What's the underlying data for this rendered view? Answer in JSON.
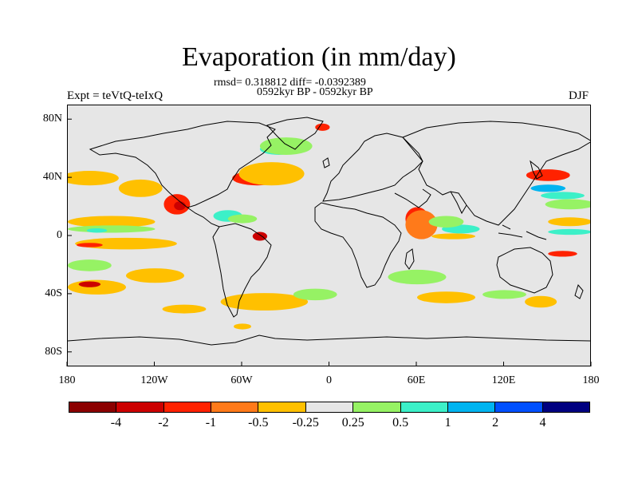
{
  "title": "Evaporation (in mm/day)",
  "stats_line": "rmsd= 0.318812 diff= -0.0392389",
  "period_line": "0592kyr BP - 0592kyr BP",
  "experiment": "Expt = teVtQ-teIxQ",
  "season": "DJF",
  "map": {
    "projection": "cylindrical equidistant",
    "background_color": "#e6e6e6",
    "lon_range": [
      -180,
      180
    ],
    "lat_range": [
      -90,
      90
    ],
    "x_ticks": [
      {
        "lon": -180,
        "label": "180"
      },
      {
        "lon": -120,
        "label": "120W"
      },
      {
        "lon": -60,
        "label": "60W"
      },
      {
        "lon": 0,
        "label": "0"
      },
      {
        "lon": 60,
        "label": "60E"
      },
      {
        "lon": 120,
        "label": "120E"
      },
      {
        "lon": 180,
        "label": "180"
      }
    ],
    "y_ticks": [
      {
        "lat": 80,
        "label": "80N"
      },
      {
        "lat": 40,
        "label": "40N"
      },
      {
        "lat": 0,
        "label": "0"
      },
      {
        "lat": -40,
        "label": "40S"
      },
      {
        "lat": -80,
        "label": "80S"
      }
    ]
  },
  "colorbar": {
    "colors": [
      "#8b0000",
      "#cc0000",
      "#ff2200",
      "#ff7a1a",
      "#ffc000",
      "#e6e6e6",
      "#96f264",
      "#3cf0c8",
      "#00b4f0",
      "#0050ff",
      "#000080"
    ],
    "labels": [
      "-4",
      "-2",
      "-1",
      "-0.5",
      "-0.25",
      "0.25",
      "0.5",
      "1",
      "2",
      "4"
    ]
  },
  "anomaly_regions": [
    {
      "name": "north-pacific-west-band",
      "lon": -165,
      "lat": 40,
      "w": 40,
      "h": 10,
      "color": "#ffc000"
    },
    {
      "name": "north-pacific-east-band",
      "lon": -130,
      "lat": 33,
      "w": 30,
      "h": 12,
      "color": "#ffc000"
    },
    {
      "name": "baja-mexico-anomaly",
      "lon": -105,
      "lat": 22,
      "w": 18,
      "h": 14,
      "color": "#ff2200"
    },
    {
      "name": "mexico-core",
      "lon": -103,
      "lat": 21,
      "w": 8,
      "h": 6,
      "color": "#cc0000"
    },
    {
      "name": "tropical-pacific-orange",
      "lon": -150,
      "lat": 10,
      "w": 60,
      "h": 8,
      "color": "#ffc000"
    },
    {
      "name": "tropical-pacific-green",
      "lon": -150,
      "lat": 5,
      "w": 60,
      "h": 5,
      "color": "#96f264"
    },
    {
      "name": "tropical-pacific-cyan",
      "lon": -160,
      "lat": 4,
      "w": 14,
      "h": 3,
      "color": "#3cf0c8"
    },
    {
      "name": "equatorial-pacific-band",
      "lon": -140,
      "lat": -5,
      "w": 70,
      "h": 8,
      "color": "#ffc000"
    },
    {
      "name": "pacific-red-streak",
      "lon": -165,
      "lat": -6,
      "w": 18,
      "h": 3,
      "color": "#ff2200"
    },
    {
      "name": "caribbean-cyan",
      "lon": -70,
      "lat": 14,
      "w": 20,
      "h": 8,
      "color": "#3cf0c8"
    },
    {
      "name": "caribbean-green",
      "lon": -60,
      "lat": 12,
      "w": 20,
      "h": 6,
      "color": "#96f264"
    },
    {
      "name": "amazon-mouth-red",
      "lon": -48,
      "lat": 0,
      "w": 10,
      "h": 6,
      "color": "#cc0000"
    },
    {
      "name": "north-atlantic-red",
      "lon": -50,
      "lat": 40,
      "w": 34,
      "h": 10,
      "color": "#ff2200"
    },
    {
      "name": "north-atlantic-orange",
      "lon": -40,
      "lat": 43,
      "w": 45,
      "h": 16,
      "color": "#ffc000"
    },
    {
      "name": "labrador-cyan",
      "lon": -35,
      "lat": 60,
      "w": 26,
      "h": 8,
      "color": "#3cf0c8"
    },
    {
      "name": "greenland-sea-green",
      "lon": -30,
      "lat": 62,
      "w": 36,
      "h": 12,
      "color": "#96f264"
    },
    {
      "name": "norwegian-sea-red",
      "lon": -5,
      "lat": 75,
      "w": 10,
      "h": 5,
      "color": "#ff2200"
    },
    {
      "name": "arabian-sea-red",
      "lon": 60,
      "lat": 12,
      "w": 16,
      "h": 16,
      "color": "#ff2200"
    },
    {
      "name": "arabian-sea-orange",
      "lon": 63,
      "lat": 8,
      "w": 22,
      "h": 20,
      "color": "#ff7a1a"
    },
    {
      "name": "north-indian-cyan",
      "lon": 90,
      "lat": 5,
      "w": 26,
      "h": 6,
      "color": "#3cf0c8"
    },
    {
      "name": "north-indian-green",
      "lon": 80,
      "lat": 10,
      "w": 24,
      "h": 8,
      "color": "#96f264"
    },
    {
      "name": "indian-ocean-orange",
      "lon": 85,
      "lat": 0,
      "w": 30,
      "h": 4,
      "color": "#ffc000"
    },
    {
      "name": "west-pacific-red",
      "lon": 150,
      "lat": 42,
      "w": 30,
      "h": 8,
      "color": "#ff2200"
    },
    {
      "name": "west-pacific-blue",
      "lon": 150,
      "lat": 33,
      "w": 24,
      "h": 5,
      "color": "#00b4f0"
    },
    {
      "name": "west-pacific-cyan",
      "lon": 160,
      "lat": 28,
      "w": 30,
      "h": 5,
      "color": "#3cf0c8"
    },
    {
      "name": "west-pacific-green",
      "lon": 165,
      "lat": 22,
      "w": 34,
      "h": 7,
      "color": "#96f264"
    },
    {
      "name": "west-pacific-orange-band",
      "lon": 165,
      "lat": 10,
      "w": 30,
      "h": 6,
      "color": "#ffc000"
    },
    {
      "name": "west-pacific-cyan-band",
      "lon": 165,
      "lat": 3,
      "w": 30,
      "h": 4,
      "color": "#3cf0c8"
    },
    {
      "name": "south-pacific-red",
      "lon": 160,
      "lat": -12,
      "w": 20,
      "h": 4,
      "color": "#ff2200"
    },
    {
      "name": "south-pacific-green",
      "lon": -165,
      "lat": -20,
      "w": 30,
      "h": 8,
      "color": "#96f264"
    },
    {
      "name": "south-pacific-orange",
      "lon": -120,
      "lat": -27,
      "w": 40,
      "h": 10,
      "color": "#ffc000"
    },
    {
      "name": "south-pacific-west-orange",
      "lon": -160,
      "lat": -35,
      "w": 40,
      "h": 10,
      "color": "#ffc000"
    },
    {
      "name": "south-pacific-darkred",
      "lon": -165,
      "lat": -33,
      "w": 15,
      "h": 4,
      "color": "#cc0000"
    },
    {
      "name": "southern-ocean-orange",
      "lon": -45,
      "lat": -45,
      "w": 60,
      "h": 12,
      "color": "#ffc000"
    },
    {
      "name": "south-atlantic-green",
      "lon": -10,
      "lat": -40,
      "w": 30,
      "h": 8,
      "color": "#96f264"
    },
    {
      "name": "south-indian-green",
      "lon": 60,
      "lat": -28,
      "w": 40,
      "h": 10,
      "color": "#96f264"
    },
    {
      "name": "south-indian-orange",
      "lon": 80,
      "lat": -42,
      "w": 40,
      "h": 8,
      "color": "#ffc000"
    },
    {
      "name": "tasman-orange",
      "lon": 145,
      "lat": -45,
      "w": 22,
      "h": 8,
      "color": "#ffc000"
    },
    {
      "name": "australia-south-green",
      "lon": 120,
      "lat": -40,
      "w": 30,
      "h": 6,
      "color": "#96f264"
    },
    {
      "name": "southeast-pacific-orange",
      "lon": -100,
      "lat": -50,
      "w": 30,
      "h": 6,
      "color": "#ffc000"
    },
    {
      "name": "patagonia-orange",
      "lon": -60,
      "lat": -62,
      "w": 12,
      "h": 4,
      "color": "#ffc000"
    }
  ]
}
